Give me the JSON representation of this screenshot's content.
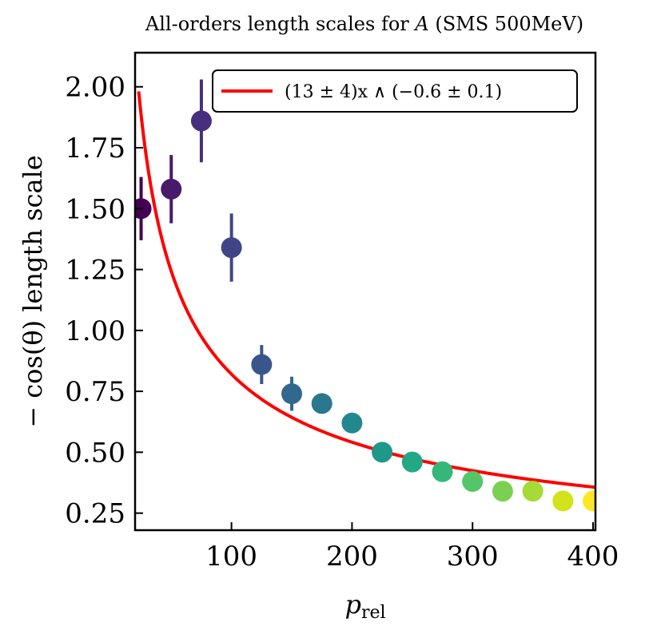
{
  "chart_data": {
    "type": "scatter",
    "title": "All-orders length scales for A (SMS 500MeV)",
    "title_parts": {
      "prefix": "All-orders length scales for ",
      "var": "A",
      "suffix": " (SMS 500MeV)"
    },
    "xlabel": "p",
    "xlabel_sub": "rel",
    "ylabel": "− cos(θ) length scale",
    "xlim": [
      20,
      402
    ],
    "ylim": [
      0.18,
      2.14
    ],
    "x_ticks": [
      100,
      200,
      300,
      400
    ],
    "x_tick_labels": [
      "100",
      "200",
      "300",
      "400"
    ],
    "y_ticks": [
      0.25,
      0.5,
      0.75,
      1.0,
      1.25,
      1.5,
      1.75,
      2.0
    ],
    "y_tick_labels": [
      "0.25",
      "0.50",
      "0.75",
      "1.00",
      "1.25",
      "1.50",
      "1.75",
      "2.00"
    ],
    "grid": false,
    "legend_position": "top-right",
    "legend_label": "(13 ± 4)x ∧ (−0.6 ± 0.1)",
    "fit": {
      "a": 13,
      "b": -0.6,
      "x_start": 23,
      "x_end": 402,
      "color": "#ff0000"
    },
    "points": {
      "x": [
        25,
        50,
        75,
        100,
        125,
        150,
        175,
        200,
        225,
        250,
        275,
        300,
        325,
        350,
        375,
        400
      ],
      "y": [
        1.5,
        1.58,
        1.86,
        1.34,
        0.86,
        0.74,
        0.7,
        0.62,
        0.5,
        0.46,
        0.42,
        0.38,
        0.34,
        0.34,
        0.3,
        0.3
      ],
      "yerr": [
        0.13,
        0.14,
        0.17,
        0.14,
        0.08,
        0.07,
        0.03,
        0.03,
        0.02,
        0.02,
        0.02,
        0.02,
        0.02,
        0.02,
        0.01,
        0.01
      ],
      "colors": [
        "#440154",
        "#481a6c",
        "#472f7d",
        "#414487",
        "#39568c",
        "#31688e",
        "#2a788e",
        "#23888e",
        "#1f988b",
        "#22a884",
        "#35b779",
        "#54c568",
        "#7ad151",
        "#a5db36",
        "#d2e21b",
        "#fde725"
      ]
    }
  }
}
